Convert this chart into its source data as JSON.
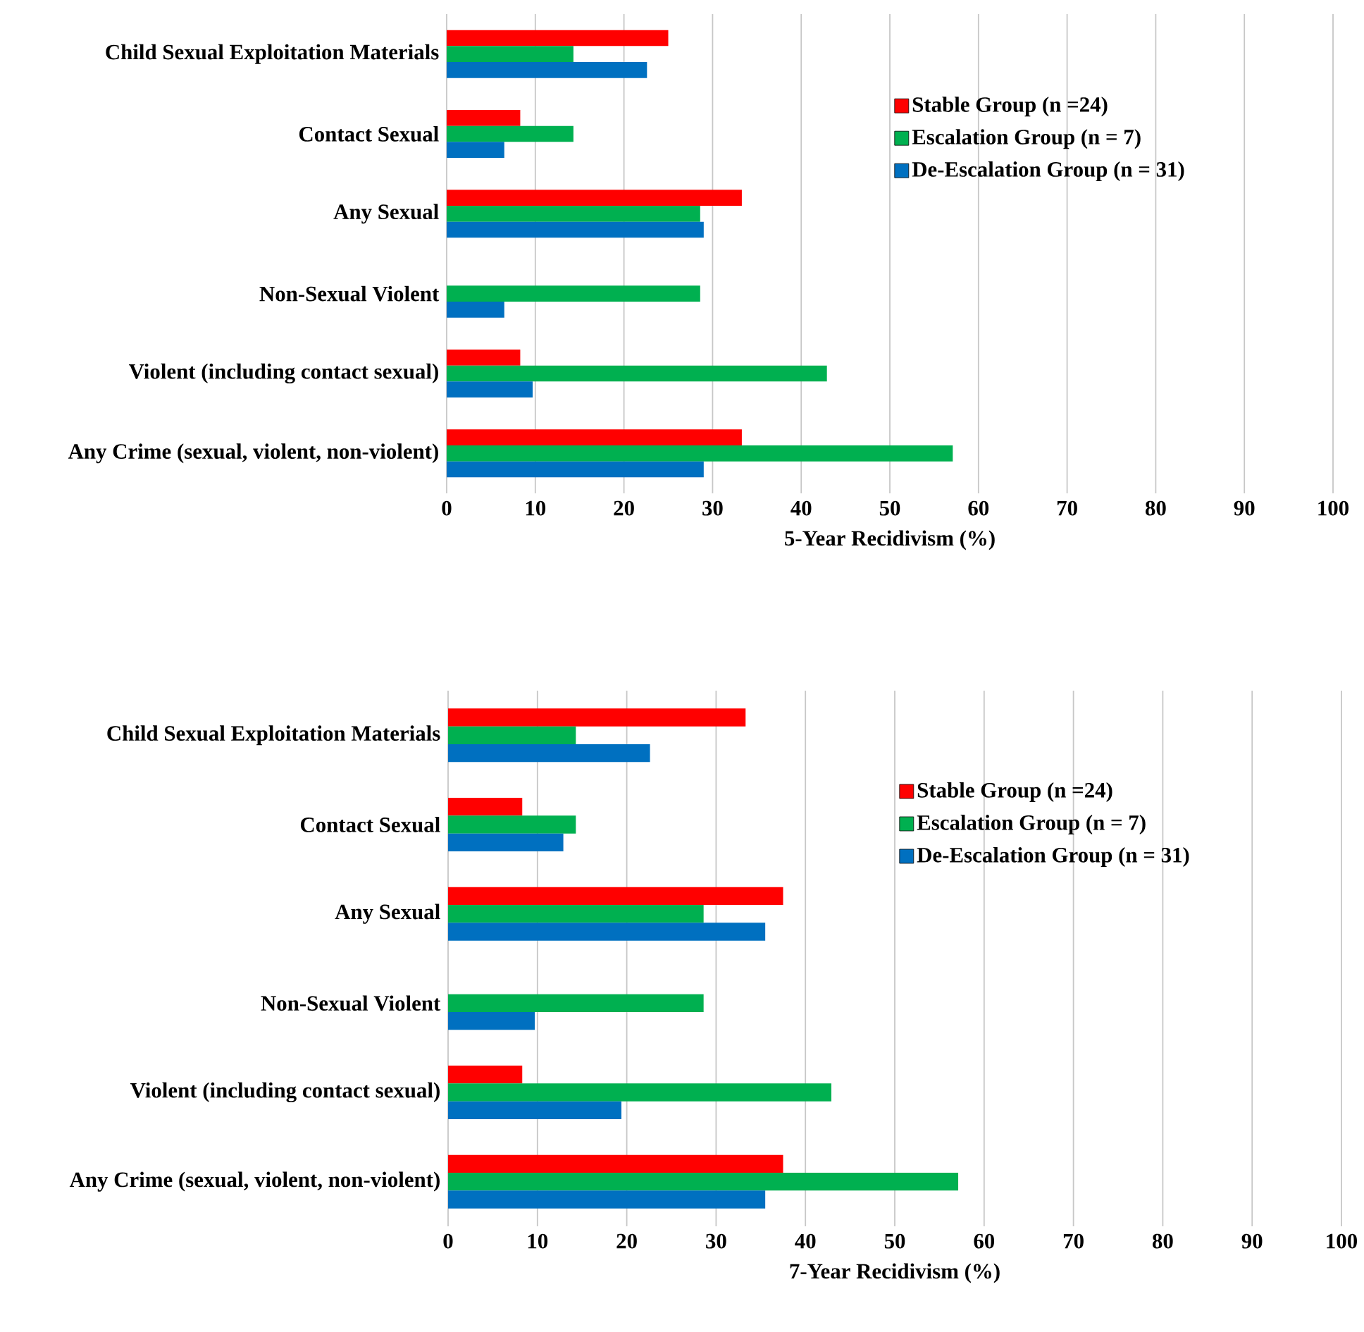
{
  "chart_data": [
    {
      "type": "bar",
      "orientation": "horizontal",
      "categories": [
        "Child Sexual Exploitation Materials",
        "Contact Sexual",
        "Any Sexual",
        "Non-Sexual Violent",
        "Violent (including contact sexual)",
        "Any Crime (sexual, violent, non-violent)"
      ],
      "series": [
        {
          "name": "Stable Group (n =24)",
          "color": "#ff0000",
          "values": [
            25.0,
            8.3,
            33.3,
            0,
            8.3,
            33.3
          ]
        },
        {
          "name": "Escalation Group (n = 7)",
          "color": "#00b050",
          "values": [
            14.3,
            14.3,
            28.6,
            28.6,
            42.9,
            57.1
          ]
        },
        {
          "name": "De-Escalation Group (n = 31)",
          "color": "#0070c0",
          "values": [
            22.6,
            6.5,
            29.0,
            6.5,
            9.7,
            29.0
          ]
        }
      ],
      "xlim": [
        0,
        100
      ],
      "xticks": [
        0,
        10,
        20,
        30,
        40,
        50,
        60,
        70,
        80,
        90,
        100
      ],
      "xlabel": "5-Year Recidivism (%)",
      "grid": "x",
      "legend": "top right"
    },
    {
      "type": "bar",
      "orientation": "horizontal",
      "categories": [
        "Child Sexual Exploitation Materials",
        "Contact Sexual",
        "Any Sexual",
        "Non-Sexual Violent",
        "Violent (including contact sexual)",
        "Any Crime (sexual, violent, non-violent)"
      ],
      "series": [
        {
          "name": "Stable Group (n =24)",
          "color": "#ff0000",
          "values": [
            33.3,
            8.3,
            37.5,
            0,
            8.3,
            37.5
          ]
        },
        {
          "name": "Escalation Group (n = 7)",
          "color": "#00b050",
          "values": [
            14.3,
            14.3,
            28.6,
            28.6,
            42.9,
            57.1
          ]
        },
        {
          "name": "De-Escalation Group (n = 31)",
          "color": "#0070c0",
          "values": [
            22.6,
            12.9,
            35.5,
            9.7,
            19.4,
            35.5
          ]
        }
      ],
      "xlim": [
        0,
        100
      ],
      "xticks": [
        0,
        10,
        20,
        30,
        40,
        50,
        60,
        70,
        80,
        90,
        100
      ],
      "xlabel": "7-Year Recidivism (%)",
      "grid": "x",
      "legend": "top right"
    }
  ]
}
